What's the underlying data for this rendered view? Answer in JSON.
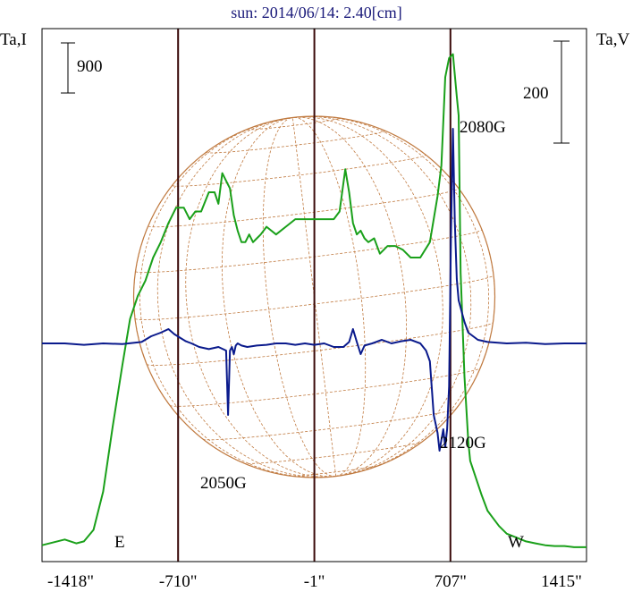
{
  "chart_data": {
    "type": "line",
    "title": "sun: 2014/06/14: 2.40[cm]",
    "left_axis_label": "Ta,I",
    "right_axis_label": "Ta,V",
    "x_ticks": [
      "-1418\"",
      "-710\"",
      "-1\"",
      "707\"",
      "1415\""
    ],
    "x_tick_values": [
      -1418,
      -710,
      -1,
      707,
      1415
    ],
    "xlim": [
      -1418,
      1415
    ],
    "disk_edges": {
      "E": -710,
      "W": 707
    },
    "vertical_lines": [
      -710,
      -1,
      707
    ],
    "scale_bars": [
      {
        "label": "900",
        "axis": "I"
      },
      {
        "label": "200",
        "axis": "V"
      }
    ],
    "limb_labels": {
      "east": "E",
      "west": "W"
    },
    "annotations": [
      "2050G",
      "2080G",
      "2120G"
    ],
    "colors": {
      "I": "#1aa01a",
      "V": "#0a1a8c",
      "frame": "#000000",
      "vline": "#3a0a0a",
      "grid": "#c07a40",
      "title": "#1a1a7a"
    },
    "series": [
      {
        "id": "I",
        "x": [
          -1418,
          -1300,
          -1240,
          -1200,
          -1150,
          -1100,
          -1050,
          -1000,
          -960,
          -920,
          -880,
          -840,
          -800,
          -760,
          -720,
          -680,
          -650,
          -620,
          -590,
          -550,
          -520,
          -500,
          -480,
          -460,
          -440,
          -420,
          -400,
          -380,
          -360,
          -340,
          -320,
          -300,
          -280,
          -250,
          -200,
          -150,
          -100,
          -50,
          -1,
          50,
          100,
          130,
          160,
          180,
          200,
          220,
          240,
          260,
          280,
          310,
          340,
          380,
          420,
          460,
          500,
          550,
          600,
          640,
          660,
          680,
          700,
          720,
          740,
          750,
          760,
          780,
          800,
          810,
          830,
          850,
          870,
          900,
          930,
          960,
          1000,
          1050,
          1100,
          1150,
          1200,
          1250,
          1300,
          1350,
          1415
        ],
        "y": [
          10,
          25,
          15,
          20,
          50,
          150,
          320,
          480,
          600,
          660,
          700,
          760,
          800,
          850,
          890,
          890,
          860,
          880,
          880,
          930,
          930,
          900,
          980,
          960,
          940,
          870,
          830,
          800,
          800,
          820,
          800,
          810,
          820,
          840,
          820,
          840,
          860,
          860,
          860,
          860,
          860,
          880,
          990,
          930,
          850,
          820,
          830,
          810,
          800,
          810,
          770,
          790,
          790,
          780,
          760,
          760,
          800,
          920,
          1000,
          1230,
          1280,
          1290,
          1180,
          1130,
          720,
          450,
          280,
          230,
          200,
          170,
          140,
          100,
          80,
          60,
          40,
          30,
          20,
          15,
          10,
          8,
          8,
          5,
          5
        ]
      },
      {
        "id": "V",
        "x": [
          -1418,
          -1300,
          -1200,
          -1100,
          -1000,
          -900,
          -850,
          -800,
          -760,
          -730,
          -700,
          -670,
          -640,
          -600,
          -550,
          -500,
          -460,
          -450,
          -440,
          -430,
          -420,
          -410,
          -400,
          -380,
          -350,
          -300,
          -250,
          -200,
          -150,
          -100,
          -50,
          -1,
          50,
          100,
          150,
          180,
          200,
          220,
          240,
          260,
          300,
          350,
          400,
          450,
          500,
          550,
          580,
          600,
          620,
          640,
          650,
          660,
          670,
          680,
          690,
          700,
          710,
          720,
          730,
          740,
          750,
          760,
          770,
          780,
          800,
          850,
          900,
          1000,
          1100,
          1200,
          1300,
          1415
        ],
        "y": [
          0,
          0,
          -2,
          0,
          -1,
          2,
          10,
          15,
          20,
          13,
          8,
          3,
          0,
          -5,
          -8,
          -5,
          -10,
          -100,
          -10,
          -5,
          -15,
          -3,
          0,
          -3,
          -5,
          -3,
          -2,
          0,
          0,
          -2,
          0,
          -2,
          0,
          -5,
          -5,
          2,
          20,
          2,
          -15,
          -3,
          0,
          5,
          0,
          3,
          5,
          0,
          -10,
          -25,
          -100,
          -125,
          -150,
          -135,
          -120,
          -145,
          -120,
          -60,
          150,
          300,
          170,
          90,
          60,
          50,
          40,
          30,
          15,
          5,
          2,
          0,
          1,
          -1,
          0,
          0
        ]
      }
    ]
  }
}
